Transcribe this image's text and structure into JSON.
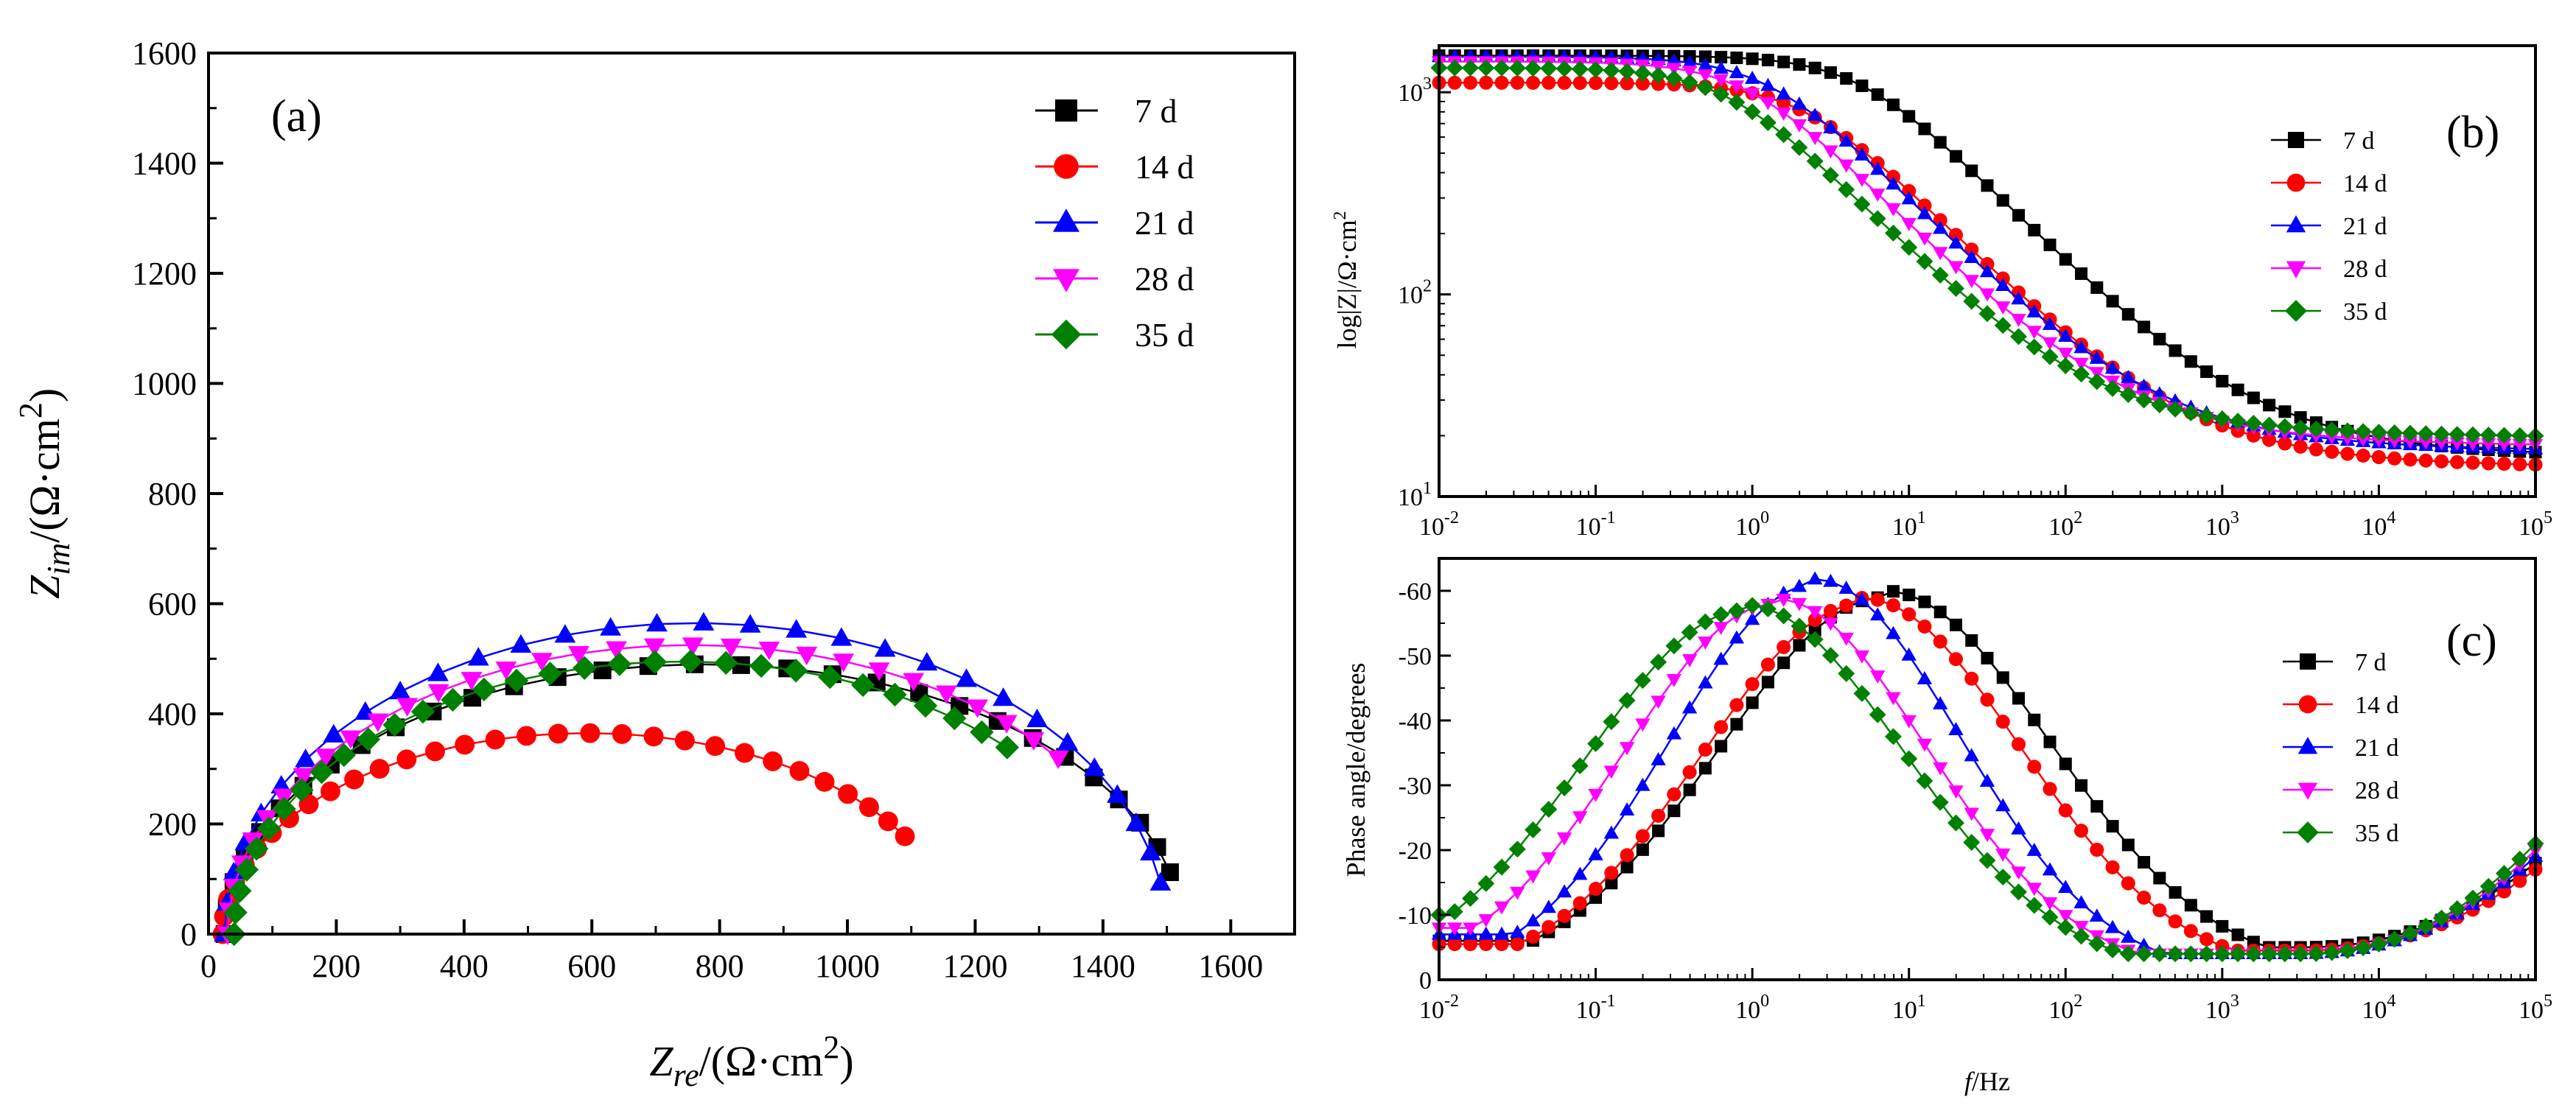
{
  "chart_data": [
    {
      "type": "scatter",
      "panel": "(a)",
      "title": "",
      "xlabel": {
        "main": "Z",
        "sub": "re",
        "unit": "/(Ω·cm",
        "sup": "2",
        "close": ")"
      },
      "ylabel": {
        "main": "Z",
        "sub": "im",
        "unit": "/(Ω·cm",
        "sup": "2",
        "close": ")"
      },
      "xlim": [
        0,
        1700
      ],
      "ylim": [
        0,
        1600
      ],
      "x_ticks": [
        "0",
        "200",
        "400",
        "600",
        "800",
        "1000",
        "1200",
        "1400",
        "1600"
      ],
      "y_ticks": [
        "0",
        "200",
        "400",
        "600",
        "800",
        "1000",
        "1200",
        "1400",
        "1600"
      ],
      "legend_position": "top-right",
      "series": [
        {
          "name": "7 d",
          "color": "#000000",
          "marker": "square",
          "r_ohm": 25,
          "rct": 1500,
          "peak": 490,
          "end": 1505
        },
        {
          "name": "14 d",
          "color": "#ff0000",
          "marker": "circle",
          "r_ohm": 22,
          "rct": 1140,
          "peak": 365,
          "end": 1090
        },
        {
          "name": "21 d",
          "color": "#0000ff",
          "marker": "triangle-up",
          "r_ohm": 25,
          "rct": 1475,
          "peak": 565,
          "end": 1490
        },
        {
          "name": "28 d",
          "color": "#ff00ff",
          "marker": "triangle-down",
          "r_ohm": 30,
          "rct": 1450,
          "peak": 525,
          "end": 1330
        },
        {
          "name": "35 d",
          "color": "#008000",
          "marker": "diamond",
          "r_ohm": 40,
          "rct": 1400,
          "peak": 495,
          "end": 1250
        }
      ]
    },
    {
      "type": "scatter",
      "panel": "(b)",
      "title": "",
      "xlabel": "",
      "ylabel": {
        "text": "log|Z|/Ω·cm",
        "sup": "2"
      },
      "x_scale": "log",
      "y_scale": "log",
      "xlim": [
        0.01,
        100000
      ],
      "ylim": [
        10,
        1700
      ],
      "x_ticks": [
        {
          "base": "10",
          "exp": "-2"
        },
        {
          "base": "10",
          "exp": "-1"
        },
        {
          "base": "10",
          "exp": "0"
        },
        {
          "base": "10",
          "exp": "1"
        },
        {
          "base": "10",
          "exp": "2"
        },
        {
          "base": "10",
          "exp": "3"
        },
        {
          "base": "10",
          "exp": "4"
        },
        {
          "base": "10",
          "exp": "5"
        }
      ],
      "y_ticks": [
        {
          "base": "10",
          "exp": "1"
        },
        {
          "base": "10",
          "exp": "2"
        },
        {
          "base": "10",
          "exp": "3"
        }
      ],
      "legend_position": "right",
      "series": [
        {
          "name": "7 d",
          "color": "#000000",
          "marker": "square",
          "rs": 17,
          "rct": 1500,
          "fc": 5.0
        },
        {
          "name": "14 d",
          "color": "#ff0000",
          "marker": "circle",
          "rs": 15,
          "rct": 1100,
          "fc": 2.2
        },
        {
          "name": "21 d",
          "color": "#0000ff",
          "marker": "triangle-up",
          "rs": 18,
          "rct": 1480,
          "fc": 1.3
        },
        {
          "name": "28 d",
          "color": "#ff00ff",
          "marker": "triangle-down",
          "rs": 19,
          "rct": 1400,
          "fc": 0.95
        },
        {
          "name": "35 d",
          "color": "#008000",
          "marker": "diamond",
          "rs": 21,
          "rct": 1300,
          "fc": 0.7
        }
      ]
    },
    {
      "type": "scatter",
      "panel": "(c)",
      "title": "",
      "xlabel": {
        "italic": "f",
        "rest": "/Hz"
      },
      "ylabel": {
        "text": "Phase angle/degrees"
      },
      "x_scale": "log",
      "xlim": [
        0.01,
        100000
      ],
      "ylim": [
        0,
        -65
      ],
      "x_ticks": [
        {
          "base": "10",
          "exp": "-2"
        },
        {
          "base": "10",
          "exp": "-1"
        },
        {
          "base": "10",
          "exp": "0"
        },
        {
          "base": "10",
          "exp": "1"
        },
        {
          "base": "10",
          "exp": "2"
        },
        {
          "base": "10",
          "exp": "3"
        },
        {
          "base": "10",
          "exp": "4"
        },
        {
          "base": "10",
          "exp": "5"
        }
      ],
      "y_ticks": [
        "0",
        "-10",
        "-20",
        "-30",
        "-40",
        "-50",
        "-60"
      ],
      "legend_position": "right",
      "series": [
        {
          "name": "7 d",
          "color": "#000000",
          "marker": "square",
          "peak_f": 7,
          "peak": 59,
          "width": 2.4,
          "low_f": 0.01,
          "low_val": 6,
          "min_val": 5,
          "hf": 18
        },
        {
          "name": "14 d",
          "color": "#ff0000",
          "marker": "circle",
          "peak_f": 5,
          "peak": 58,
          "width": 2.3,
          "low_f": 0.01,
          "low_val": 5.5,
          "min_val": 4.5,
          "hf": 17
        },
        {
          "name": "21 d",
          "color": "#0000ff",
          "marker": "triangle-up",
          "peak_f": 2.5,
          "peak": 61,
          "width": 2.1,
          "low_f": 0.01,
          "low_val": 7,
          "min_val": 4,
          "hf": 19
        },
        {
          "name": "28 d",
          "color": "#ff00ff",
          "marker": "triangle-down",
          "peak_f": 1.4,
          "peak": 58,
          "width": 2.2,
          "low_f": 0.01,
          "low_val": 8,
          "min_val": 4,
          "hf": 20
        },
        {
          "name": "35 d",
          "color": "#008000",
          "marker": "diamond",
          "peak_f": 0.9,
          "peak": 57,
          "width": 2.3,
          "low_f": 0.01,
          "low_val": 10,
          "min_val": 4,
          "hf": 21
        }
      ]
    }
  ]
}
